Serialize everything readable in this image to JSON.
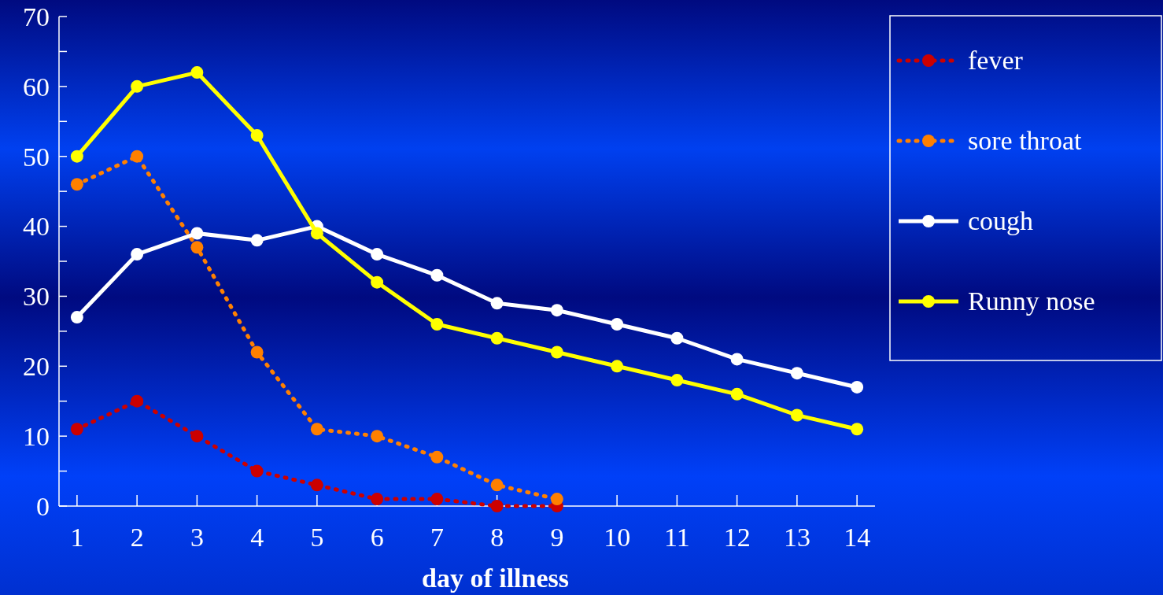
{
  "chart_data": {
    "type": "line",
    "xlabel": "day of illness",
    "x": [
      1,
      2,
      3,
      4,
      5,
      6,
      7,
      8,
      9,
      10,
      11,
      12,
      13,
      14
    ],
    "xlim": [
      0.7,
      14.3
    ],
    "xticks": [
      1,
      2,
      3,
      4,
      5,
      6,
      7,
      8,
      9,
      10,
      11,
      12,
      13,
      14
    ],
    "ylim": [
      0,
      70
    ],
    "yticks": [
      0,
      {
        "value": 5,
        "label": null
      },
      10,
      {
        "value": 15,
        "label": null
      },
      20,
      {
        "value": 25,
        "label": null
      },
      30,
      {
        "value": 35,
        "label": null
      },
      40,
      {
        "value": 45,
        "label": null
      },
      50,
      {
        "value": 55,
        "label": null
      },
      60,
      {
        "value": 65,
        "label": null
      },
      70
    ],
    "marker": "circle",
    "legend": "top right",
    "grid": false,
    "series": [
      {
        "name": "fever",
        "color": "#cc0000",
        "line_style": "dotted",
        "x": [
          1,
          2,
          3,
          4,
          5,
          6,
          7,
          8,
          9
        ],
        "values": [
          11,
          15,
          10,
          5,
          3,
          1,
          1,
          0,
          0
        ]
      },
      {
        "name": "sore throat",
        "color": "#ff8000",
        "line_style": "dotted",
        "x": [
          1,
          2,
          3,
          4,
          5,
          6,
          7,
          8,
          9
        ],
        "values": [
          46,
          50,
          37,
          22,
          11,
          10,
          7,
          3,
          1
        ]
      },
      {
        "name": "cough",
        "color": "#ffffff",
        "line_style": "solid",
        "values": [
          27,
          36,
          39,
          38,
          40,
          36,
          33,
          29,
          28,
          26,
          24,
          21,
          19,
          17
        ]
      },
      {
        "name": "Runny nose",
        "color": "#ffff00",
        "line_style": "solid",
        "values": [
          50,
          60,
          62,
          53,
          39,
          32,
          26,
          24,
          22,
          20,
          18,
          16,
          13,
          11
        ]
      }
    ]
  }
}
